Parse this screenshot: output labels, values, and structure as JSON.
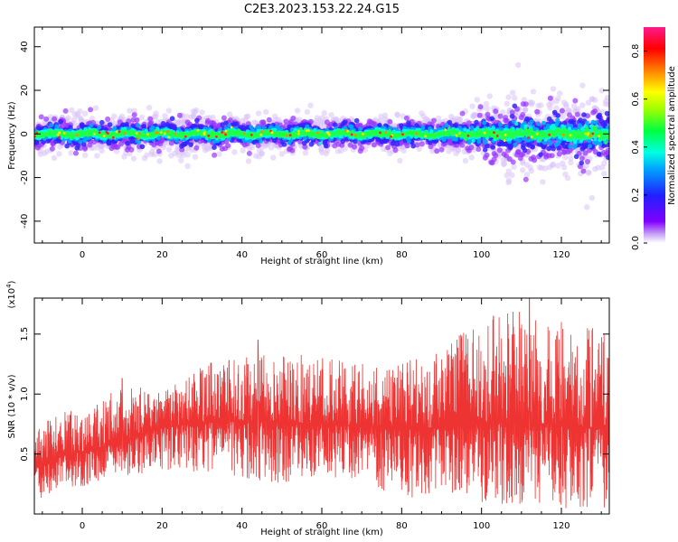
{
  "title": "C2E3.2023.153.22.24.G15",
  "chart_data": [
    {
      "type": "heatmap",
      "xlabel": "Height of straight line (km)",
      "ylabel": "Frequency (Hz)",
      "xlim": [
        -12,
        132
      ],
      "ylim": [
        -50,
        49
      ],
      "xticks": [
        0,
        20,
        40,
        60,
        80,
        100,
        120
      ],
      "yticks": [
        -40,
        -20,
        0,
        20,
        40
      ],
      "ytick_labels": [
        "-40",
        "-20",
        "0",
        "20",
        "40"
      ],
      "colorbar": {
        "label": "Normalized spectral amplitude",
        "range": [
          0,
          0.9
        ],
        "ticks": [
          0.0,
          0.2,
          0.4,
          0.6,
          0.8
        ],
        "tick_labels": [
          "0.0",
          "0.2",
          "0.4",
          "0.6",
          "0.8"
        ],
        "colormap": "rainbow (white - violet - blue - cyan - green - yellow - red - magenta)"
      },
      "signal_band": {
        "center_hz": 0,
        "core_halfwidth_hz": [
          4,
          4,
          4,
          4,
          4,
          4,
          4,
          4,
          5,
          7,
          9
        ],
        "halfwidth_at_x": [
          -12,
          0,
          20,
          40,
          60,
          80,
          90,
          95,
          100,
          110,
          132
        ],
        "spread_halfwidth_hz": [
          10,
          9,
          9,
          8,
          8,
          8,
          8,
          10,
          14,
          18,
          18
        ]
      },
      "grid": false
    },
    {
      "type": "line",
      "xlabel": "Height of straight line (km)",
      "ylabel": "SNR (10 * v/v)",
      "scale_note": "(x10",
      "scale_exponent": "4",
      "scale_close": ")",
      "xlim": [
        -12,
        132
      ],
      "ylim": [
        0,
        1.8
      ],
      "xticks": [
        0,
        20,
        40,
        60,
        80,
        100,
        120
      ],
      "yticks": [
        0.5,
        1.0,
        1.5
      ],
      "ytick_labels": [
        "0.5",
        "1.0",
        "1.5"
      ],
      "series": [
        {
          "color": "#ee3333",
          "mean_x": [
            -12,
            -5,
            0,
            10,
            20,
            30,
            40,
            50,
            60,
            70,
            80,
            90,
            100,
            110,
            120,
            132
          ],
          "mean_y": [
            0.4,
            0.48,
            0.52,
            0.6,
            0.72,
            0.76,
            0.78,
            0.77,
            0.75,
            0.73,
            0.72,
            0.72,
            0.76,
            0.76,
            0.74,
            0.7
          ],
          "envelope_low": [
            0.1,
            0.2,
            0.22,
            0.3,
            0.35,
            0.35,
            0.3,
            0.25,
            0.3,
            0.3,
            0.1,
            0.2,
            0.1,
            0.05,
            0.05,
            0.05
          ],
          "envelope_high": [
            0.7,
            0.9,
            0.8,
            1.1,
            1.0,
            1.25,
            1.3,
            1.35,
            1.3,
            1.25,
            1.25,
            1.4,
            1.6,
            1.8,
            1.55,
            1.55
          ],
          "peaks": [
            [
              10,
              1.13
            ],
            [
              44,
              1.45
            ],
            [
              103,
              1.65
            ],
            [
              112,
              1.8
            ],
            [
              120,
              1.6
            ]
          ]
        }
      ],
      "grid": false
    }
  ]
}
